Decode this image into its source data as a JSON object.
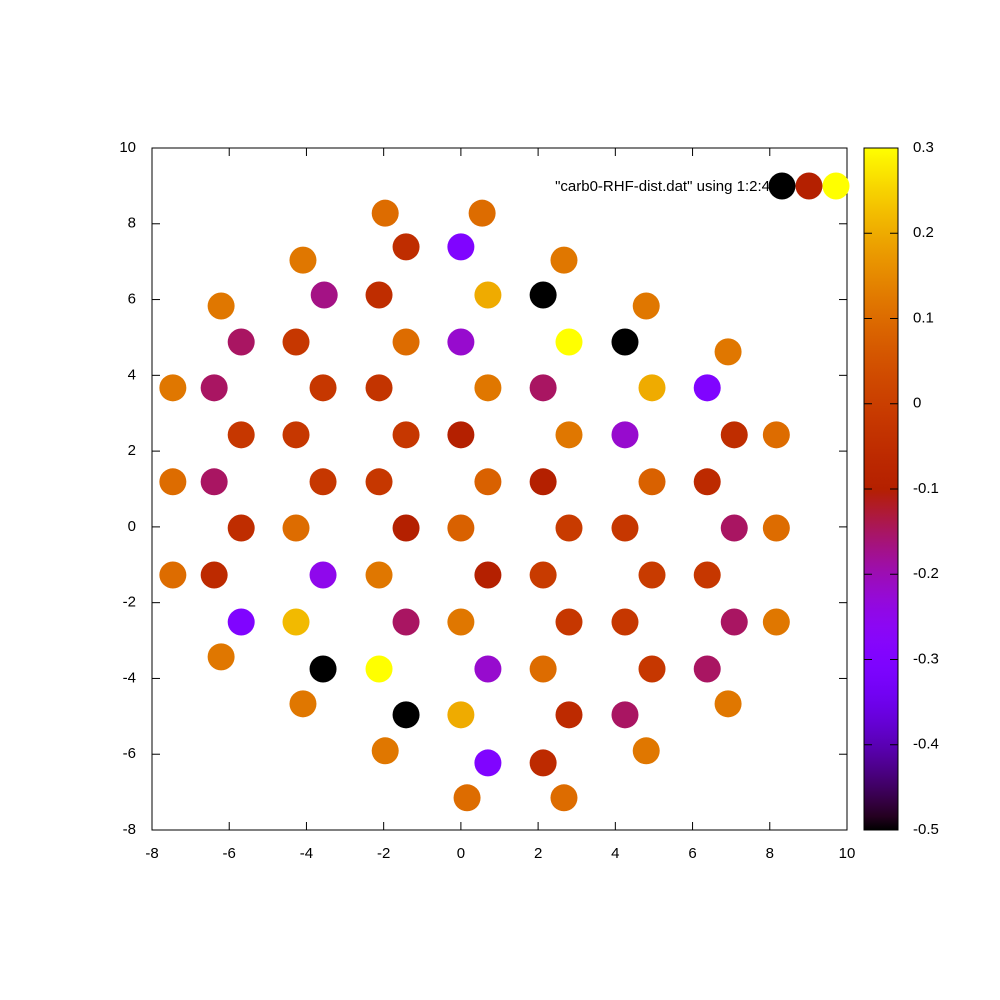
{
  "chart_data": {
    "type": "scatter",
    "legend_label": "\"carb0-RHF-dist.dat\" using 1:2:4",
    "x": [
      -1.96,
      0.55,
      -1.42,
      0.0,
      -4.09,
      2.67,
      -3.54,
      -2.12,
      0.7,
      2.13,
      -6.21,
      4.8,
      -5.69,
      -4.27,
      -1.42,
      0.0,
      2.8,
      4.25,
      6.92,
      -7.46,
      -6.39,
      -3.57,
      -2.12,
      0.7,
      2.13,
      4.95,
      6.38,
      -5.69,
      -4.27,
      -1.42,
      0.0,
      2.8,
      4.25,
      7.08,
      8.17,
      -7.46,
      -6.39,
      -3.57,
      -2.12,
      0.7,
      2.13,
      4.95,
      6.38,
      -5.69,
      -4.27,
      -1.42,
      0.0,
      2.8,
      4.25,
      7.08,
      8.17,
      -7.46,
      -6.39,
      -3.57,
      -2.12,
      0.7,
      2.13,
      4.95,
      6.38,
      -5.69,
      -4.27,
      -1.42,
      0.0,
      2.8,
      4.25,
      7.08,
      8.17,
      -6.21,
      -3.57,
      -2.12,
      0.7,
      2.13,
      4.95,
      6.38,
      -4.09,
      6.92,
      -1.42,
      0.0,
      2.8,
      4.25,
      -1.96,
      4.8,
      0.7,
      2.13,
      0.16,
      2.67
    ],
    "y": [
      8.28,
      8.28,
      7.39,
      7.39,
      7.04,
      7.04,
      6.12,
      6.12,
      6.12,
      6.12,
      5.83,
      5.83,
      4.88,
      4.88,
      4.88,
      4.88,
      4.88,
      4.88,
      4.62,
      3.67,
      3.67,
      3.67,
      3.67,
      3.67,
      3.67,
      3.67,
      3.67,
      2.43,
      2.43,
      2.43,
      2.43,
      2.43,
      2.43,
      2.43,
      2.43,
      1.19,
      1.19,
      1.19,
      1.19,
      1.19,
      1.19,
      1.19,
      1.19,
      -0.03,
      -0.03,
      -0.03,
      -0.03,
      -0.03,
      -0.03,
      -0.03,
      -0.03,
      -1.27,
      -1.27,
      -1.27,
      -1.27,
      -1.27,
      -1.27,
      -1.27,
      -1.27,
      -2.51,
      -2.51,
      -2.51,
      -2.51,
      -2.51,
      -2.51,
      -2.51,
      -2.51,
      -3.43,
      -3.75,
      -3.75,
      -3.75,
      -3.75,
      -3.75,
      -3.75,
      -4.67,
      -4.67,
      -4.96,
      -4.96,
      -4.96,
      -4.96,
      -5.91,
      -5.91,
      -6.23,
      -6.23,
      -7.15,
      -7.15
    ],
    "color_values": [
      0.1,
      0.1,
      -0.05,
      -0.3,
      0.12,
      0.12,
      -0.17,
      -0.05,
      0.2,
      -0.5,
      0.12,
      0.12,
      -0.15,
      -0.02,
      0.1,
      -0.22,
      0.3,
      -0.5,
      0.12,
      0.12,
      -0.15,
      -0.02,
      -0.03,
      0.12,
      -0.15,
      0.2,
      -0.3,
      -0.02,
      -0.02,
      -0.02,
      -0.1,
      0.12,
      -0.22,
      -0.05,
      0.1,
      0.1,
      -0.15,
      -0.02,
      -0.02,
      0.08,
      -0.1,
      0.08,
      -0.06,
      -0.05,
      0.1,
      -0.1,
      0.08,
      -0.01,
      -0.02,
      -0.15,
      0.1,
      0.1,
      -0.06,
      -0.25,
      0.12,
      -0.1,
      -0.01,
      -0.01,
      -0.02,
      -0.3,
      0.22,
      -0.15,
      0.12,
      -0.02,
      -0.02,
      -0.15,
      0.12,
      0.12,
      -0.5,
      0.3,
      -0.22,
      0.1,
      -0.02,
      -0.15,
      0.12,
      0.12,
      -0.5,
      0.2,
      -0.06,
      -0.15,
      0.12,
      0.12,
      -0.3,
      -0.06,
      0.1,
      0.1
    ],
    "xlim": [
      -8,
      10
    ],
    "ylim": [
      -8,
      10
    ],
    "xticks": [
      -8,
      -6,
      -4,
      -2,
      0,
      2,
      4,
      6,
      8,
      10
    ],
    "yticks": [
      -8,
      -6,
      -4,
      -2,
      0,
      2,
      4,
      6,
      8,
      10
    ],
    "cblim": [
      -0.5,
      0.3
    ],
    "cbticks": [
      -0.5,
      -0.4,
      -0.3,
      -0.2,
      -0.1,
      0,
      0.1,
      0.2,
      0.3
    ],
    "palette": [
      7,
      5,
      15
    ],
    "grid": false
  }
}
